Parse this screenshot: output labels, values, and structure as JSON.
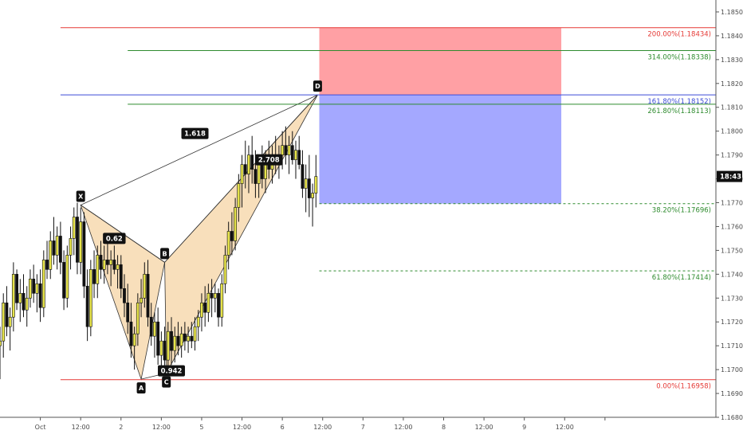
{
  "chart_data": {
    "type": "candlestick",
    "price_range": [
      1.168,
      1.1855
    ],
    "time_range_hours": [
      -12,
      201
    ],
    "x_ticks": [
      {
        "label": "Oct",
        "t": 0
      },
      {
        "label": "12:00",
        "t": 12
      },
      {
        "label": "2",
        "t": 24
      },
      {
        "label": "12:00",
        "t": 36
      },
      {
        "label": "5",
        "t": 48
      },
      {
        "label": "12:00",
        "t": 60
      },
      {
        "label": "6",
        "t": 72
      },
      {
        "label": "12:00",
        "t": 84
      },
      {
        "label": "7",
        "t": 96
      },
      {
        "label": "12:00",
        "t": 108
      },
      {
        "label": "8",
        "t": 120
      },
      {
        "label": "12:00",
        "t": 132
      },
      {
        "label": "9",
        "t": 144
      },
      {
        "label": "12:00",
        "t": 156
      },
      {
        "label": "",
        "t": 168
      }
    ],
    "y_ticks": [
      "1.16800",
      "1.16900",
      "1.17000",
      "1.17100",
      "1.17200",
      "1.17300",
      "1.17400",
      "1.17500",
      "1.17600",
      "1.17700",
      "1.17800",
      "1.17900",
      "1.18000",
      "1.18100",
      "1.18200",
      "1.18300",
      "1.18400",
      "1.18500"
    ],
    "last_price": {
      "label": "18:43",
      "value": 1.1781
    },
    "levels": [
      {
        "label": "200.00%(1.18434)",
        "value": 1.18434,
        "color": "#e53935",
        "style": "solid",
        "t_start": 6,
        "t_end": 201
      },
      {
        "label": "314.00%(1.18338)",
        "value": 1.18338,
        "color": "#2e8b2e",
        "style": "solid",
        "t_start": 26,
        "t_end": 201
      },
      {
        "label": "161.80%(1.18152)",
        "value": 1.18152,
        "color": "#3b4bd6",
        "style": "solid",
        "t_start": 6,
        "t_end": 201
      },
      {
        "label": "261.80%(1.18113)",
        "value": 1.18113,
        "color": "#2e8b2e",
        "style": "solid",
        "t_start": 26,
        "t_end": 201
      },
      {
        "label": "38.20%(1.17696)",
        "value": 1.17696,
        "color": "#2e8b2e",
        "style": "dashed",
        "t_start": 83,
        "t_end": 201
      },
      {
        "label": "61.80%(1.17414)",
        "value": 1.17414,
        "color": "#2e8b2e",
        "style": "dashed",
        "t_start": 83,
        "t_end": 201
      },
      {
        "label": "0.00%(1.16958)",
        "value": 1.16958,
        "color": "#e53935",
        "style": "solid",
        "t_start": 6,
        "t_end": 201
      }
    ],
    "pattern_points": [
      {
        "label": "X",
        "t": 12,
        "value": 1.1769
      },
      {
        "label": "A",
        "t": 30,
        "value": 1.1696
      },
      {
        "label": "B",
        "t": 37,
        "value": 1.1745
      },
      {
        "label": "C",
        "t": 37.5,
        "value": 1.16985
      },
      {
        "label": "D",
        "t": 82.5,
        "value": 1.18152
      }
    ],
    "ratios": [
      {
        "label": "0.62",
        "t": 22,
        "value": 1.1755
      },
      {
        "label": "0.942",
        "t": 39,
        "value": 1.16995
      },
      {
        "label": "2.708",
        "t": 68,
        "value": 1.1788
      },
      {
        "label": "1.618",
        "t": 46,
        "value": 1.1799
      }
    ],
    "position_box": {
      "t_start": 83,
      "t_end": 155,
      "stop": 1.18434,
      "entry": 1.18152,
      "target": 1.17696,
      "stop_color": "#ffa0a4",
      "target_color": "#a4a8ff"
    },
    "candles": [
      [
        -12,
        1.171,
        1.1718,
        1.1696,
        1.1712
      ],
      [
        -11,
        1.1712,
        1.1732,
        1.1705,
        1.1728
      ],
      [
        -10,
        1.1728,
        1.1735,
        1.1714,
        1.1718
      ],
      [
        -9,
        1.1718,
        1.1726,
        1.1708,
        1.1722
      ],
      [
        -8,
        1.1722,
        1.1745,
        1.1716,
        1.174
      ],
      [
        -7,
        1.174,
        1.1742,
        1.1725,
        1.1728
      ],
      [
        -6,
        1.1728,
        1.1738,
        1.172,
        1.1732
      ],
      [
        -5,
        1.1732,
        1.174,
        1.1722,
        1.1725
      ],
      [
        -4,
        1.1725,
        1.1735,
        1.1718,
        1.173
      ],
      [
        -3,
        1.173,
        1.1742,
        1.1726,
        1.1738
      ],
      [
        -2,
        1.1738,
        1.1744,
        1.1728,
        1.1732
      ],
      [
        -1,
        1.1732,
        1.174,
        1.1724,
        1.1736
      ],
      [
        0,
        1.1736,
        1.1742,
        1.172,
        1.1726
      ],
      [
        1,
        1.1726,
        1.175,
        1.1722,
        1.1746
      ],
      [
        2,
        1.1746,
        1.1754,
        1.1738,
        1.1742
      ],
      [
        3,
        1.1742,
        1.1758,
        1.1738,
        1.1754
      ],
      [
        4,
        1.1754,
        1.1764,
        1.1744,
        1.1748
      ],
      [
        5,
        1.1748,
        1.176,
        1.1742,
        1.1756
      ],
      [
        6,
        1.1756,
        1.1762,
        1.174,
        1.1745
      ],
      [
        7,
        1.1745,
        1.175,
        1.1725,
        1.173
      ],
      [
        8,
        1.173,
        1.1752,
        1.1726,
        1.1748
      ],
      [
        9,
        1.1748,
        1.176,
        1.1742,
        1.1755
      ],
      [
        10,
        1.1755,
        1.1768,
        1.1748,
        1.1764
      ],
      [
        11,
        1.1764,
        1.177,
        1.174,
        1.1745
      ],
      [
        12,
        1.1745,
        1.1768,
        1.174,
        1.1762
      ],
      [
        13,
        1.1762,
        1.1766,
        1.173,
        1.1735
      ],
      [
        14,
        1.1735,
        1.1742,
        1.1712,
        1.1718
      ],
      [
        15,
        1.1718,
        1.1746,
        1.1714,
        1.1742
      ],
      [
        16,
        1.1742,
        1.175,
        1.173,
        1.1736
      ],
      [
        17,
        1.1736,
        1.1752,
        1.173,
        1.1748
      ],
      [
        18,
        1.1748,
        1.1754,
        1.1738,
        1.1742
      ],
      [
        19,
        1.1742,
        1.1752,
        1.1736,
        1.1746
      ],
      [
        20,
        1.1746,
        1.1754,
        1.174,
        1.1744
      ],
      [
        21,
        1.1744,
        1.175,
        1.1735,
        1.1746
      ],
      [
        22,
        1.1746,
        1.1752,
        1.174,
        1.1742
      ],
      [
        23,
        1.1742,
        1.1748,
        1.1734,
        1.1744
      ],
      [
        24,
        1.1744,
        1.1748,
        1.173,
        1.1734
      ],
      [
        25,
        1.1734,
        1.174,
        1.1722,
        1.1728
      ],
      [
        26,
        1.1728,
        1.1736,
        1.1715,
        1.172
      ],
      [
        27,
        1.172,
        1.1728,
        1.1705,
        1.171
      ],
      [
        28,
        1.171,
        1.1718,
        1.17,
        1.1715
      ],
      [
        29,
        1.1715,
        1.1732,
        1.171,
        1.1728
      ],
      [
        30,
        1.1728,
        1.1738,
        1.1722,
        1.173
      ],
      [
        31,
        1.173,
        1.1745,
        1.1726,
        1.174
      ],
      [
        32,
        1.174,
        1.1746,
        1.1718,
        1.1722
      ],
      [
        33,
        1.1722,
        1.1728,
        1.171,
        1.1714
      ],
      [
        34,
        1.1714,
        1.1724,
        1.1705,
        1.172
      ],
      [
        35,
        1.172,
        1.1726,
        1.1702,
        1.1706
      ],
      [
        36,
        1.1706,
        1.1716,
        1.1699,
        1.1712
      ],
      [
        37,
        1.1712,
        1.1718,
        1.17,
        1.1704
      ],
      [
        38,
        1.1704,
        1.172,
        1.17,
        1.1716
      ],
      [
        39,
        1.1716,
        1.1722,
        1.1702,
        1.1708
      ],
      [
        40,
        1.1708,
        1.1718,
        1.1703,
        1.1714
      ],
      [
        41,
        1.1714,
        1.172,
        1.1706,
        1.171
      ],
      [
        42,
        1.171,
        1.1718,
        1.1705,
        1.1715
      ],
      [
        43,
        1.1715,
        1.172,
        1.1708,
        1.1712
      ],
      [
        44,
        1.1712,
        1.1718,
        1.1707,
        1.1714
      ],
      [
        45,
        1.1714,
        1.172,
        1.1709,
        1.1712
      ],
      [
        46,
        1.1712,
        1.1722,
        1.1708,
        1.1718
      ],
      [
        47,
        1.1718,
        1.1725,
        1.1712,
        1.1722
      ],
      [
        48,
        1.1722,
        1.1732,
        1.1716,
        1.1728
      ],
      [
        49,
        1.1728,
        1.1735,
        1.1718,
        1.1724
      ],
      [
        50,
        1.1724,
        1.1736,
        1.172,
        1.1732
      ],
      [
        51,
        1.1732,
        1.1738,
        1.1722,
        1.173
      ],
      [
        52,
        1.173,
        1.1736,
        1.1724,
        1.1732
      ],
      [
        53,
        1.1732,
        1.1734,
        1.1718,
        1.1722
      ],
      [
        54,
        1.1722,
        1.174,
        1.1718,
        1.1736
      ],
      [
        55,
        1.1736,
        1.1752,
        1.1732,
        1.1748
      ],
      [
        56,
        1.1748,
        1.1762,
        1.1742,
        1.1758
      ],
      [
        57,
        1.1758,
        1.1766,
        1.1748,
        1.1754
      ],
      [
        58,
        1.1754,
        1.1772,
        1.175,
        1.1768
      ],
      [
        59,
        1.1768,
        1.1782,
        1.1762,
        1.1778
      ],
      [
        60,
        1.1778,
        1.179,
        1.1768,
        1.1786
      ],
      [
        61,
        1.1786,
        1.1796,
        1.1776,
        1.1782
      ],
      [
        62,
        1.1782,
        1.1794,
        1.1774,
        1.179
      ],
      [
        63,
        1.179,
        1.1798,
        1.1778,
        1.1784
      ],
      [
        64,
        1.1784,
        1.1792,
        1.1772,
        1.1778
      ],
      [
        65,
        1.1778,
        1.179,
        1.1772,
        1.1786
      ],
      [
        66,
        1.1786,
        1.1794,
        1.1776,
        1.178
      ],
      [
        67,
        1.178,
        1.1792,
        1.1774,
        1.1788
      ],
      [
        68,
        1.1788,
        1.1796,
        1.178,
        1.1784
      ],
      [
        69,
        1.1784,
        1.1794,
        1.1778,
        1.179
      ],
      [
        70,
        1.179,
        1.1798,
        1.1782,
        1.1786
      ],
      [
        71,
        1.1786,
        1.1794,
        1.178,
        1.179
      ],
      [
        72,
        1.179,
        1.18,
        1.1784,
        1.1794
      ],
      [
        73,
        1.1794,
        1.1802,
        1.1786,
        1.179
      ],
      [
        74,
        1.179,
        1.1798,
        1.1782,
        1.1794
      ],
      [
        75,
        1.1794,
        1.18,
        1.1786,
        1.1788
      ],
      [
        76,
        1.1788,
        1.1796,
        1.178,
        1.1792
      ],
      [
        77,
        1.1792,
        1.1798,
        1.1784,
        1.1786
      ],
      [
        78,
        1.1786,
        1.1792,
        1.1772,
        1.1776
      ],
      [
        79,
        1.1776,
        1.1786,
        1.1766,
        1.178
      ],
      [
        80,
        1.178,
        1.179,
        1.1764,
        1.1772
      ],
      [
        81,
        1.1772,
        1.1778,
        1.176,
        1.1774
      ],
      [
        82,
        1.1774,
        1.179,
        1.1768,
        1.1781
      ]
    ]
  }
}
